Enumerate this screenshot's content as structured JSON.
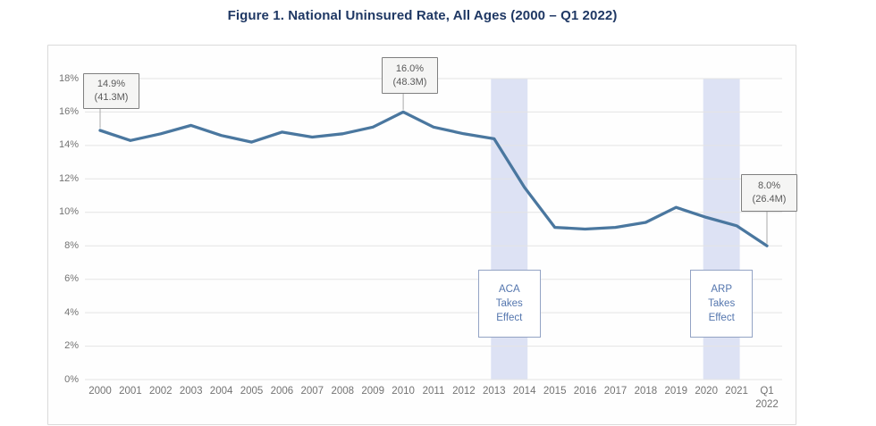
{
  "title": {
    "text": "Figure 1. National Uninsured Rate, All Ages (2000 – Q1 2022)",
    "color": "#1F3864"
  },
  "colors": {
    "title_text": "#1F3864",
    "axis_text": "#737373",
    "gridline": "#e4e4e4",
    "card_border": "#dadada",
    "line": "#4a779f",
    "band": "#dde2f4",
    "callout_background": "#f5f5f4",
    "callout_border": "#7f7f7f",
    "callout_text": "#595959",
    "annotation_border": "#93a3c4",
    "annotation_text": "#5476ae",
    "leader_line": "#a9a9a9"
  },
  "chart_data": {
    "type": "line",
    "title": "Figure 1. National Uninsured Rate, All Ages (2000 – Q1 2022)",
    "series_name": "National uninsured rate, all ages",
    "categories": [
      "2000",
      "2001",
      "2002",
      "2003",
      "2004",
      "2005",
      "2006",
      "2007",
      "2008",
      "2009",
      "2010",
      "2011",
      "2012",
      "2013",
      "2014",
      "2015",
      "2016",
      "2017",
      "2018",
      "2019",
      "2020",
      "2021",
      "Q1 2022"
    ],
    "values": [
      14.9,
      14.3,
      14.7,
      15.2,
      14.6,
      14.2,
      14.8,
      14.5,
      14.7,
      15.1,
      16.0,
      15.1,
      14.7,
      14.4,
      11.5,
      9.1,
      9.0,
      9.1,
      9.4,
      10.3,
      9.7,
      9.2,
      8.0
    ],
    "unit": "%",
    "ylim": [
      0,
      18
    ],
    "y_ticks": [
      "18%",
      "16%",
      "14%",
      "12%",
      "10%",
      "8%",
      "6%",
      "4%",
      "2%",
      "0%"
    ],
    "grid": true,
    "legend": "none",
    "xlabel": "",
    "ylabel": "",
    "line_color": "#4a779f",
    "band_color": "#dde2f4",
    "bands": [
      {
        "start_category": "2013",
        "end_category": "2014",
        "label_lines": [
          "ACA",
          "Takes",
          "Effect"
        ]
      },
      {
        "start_category": "2020",
        "end_category": "2021",
        "label_lines": [
          "ARP",
          "Takes",
          "Effect"
        ]
      }
    ],
    "callouts": [
      {
        "category": "2000",
        "lines": [
          "14.9%",
          "(41.3M)"
        ]
      },
      {
        "category": "2010",
        "lines": [
          "16.0%",
          "(48.3M)"
        ]
      },
      {
        "category": "Q1 2022",
        "lines": [
          "8.0%",
          "(26.4M)"
        ]
      }
    ]
  }
}
